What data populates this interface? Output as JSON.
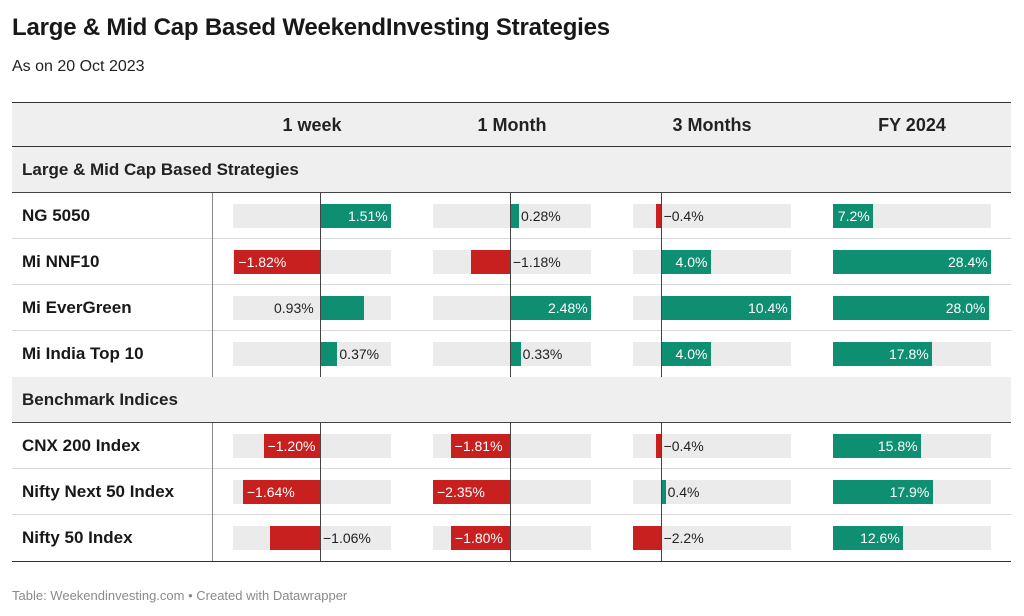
{
  "title": "Large & Mid Cap Based WeekendInvesting Strategies",
  "subtitle": "As on 20 Oct 2023",
  "footer": "Table: Weekendinvesting.com • Created with Datawrapper",
  "colors": {
    "positive": "#0e8f72",
    "negative": "#c8201f"
  },
  "chart_data": {
    "type": "table",
    "columns": [
      "1 week",
      "1 Month",
      "3 Months",
      "FY 2024"
    ],
    "groups": [
      {
        "label": "Large & Mid Cap Based Strategies",
        "rows": [
          {
            "name": "NG 5050",
            "values": [
              1.51,
              0.28,
              -0.4,
              7.2
            ],
            "labels": [
              "1.51%",
              "0.28%",
              "−0.4%",
              "7.2%"
            ]
          },
          {
            "name": "Mi NNF10",
            "values": [
              -1.82,
              -1.18,
              4.0,
              28.4
            ],
            "labels": [
              "−1.82%",
              "−1.18%",
              "4.0%",
              "28.4%"
            ]
          },
          {
            "name": "Mi EverGreen",
            "values": [
              0.93,
              2.48,
              10.4,
              28.0
            ],
            "labels": [
              "0.93%",
              "2.48%",
              "10.4%",
              "28.0%"
            ]
          },
          {
            "name": "Mi India Top 10",
            "values": [
              0.37,
              0.33,
              4.0,
              17.8
            ],
            "labels": [
              "0.37%",
              "0.33%",
              "4.0%",
              "17.8%"
            ]
          }
        ]
      },
      {
        "label": "Benchmark Indices",
        "rows": [
          {
            "name": "CNX 200 Index",
            "values": [
              -1.2,
              -1.81,
              -0.4,
              15.8
            ],
            "labels": [
              "−1.20%",
              "−1.81%",
              "−0.4%",
              "15.8%"
            ]
          },
          {
            "name": "Nifty Next 50 Index",
            "values": [
              -1.64,
              -2.35,
              0.4,
              17.9
            ],
            "labels": [
              "−1.64%",
              "−2.35%",
              "0.4%",
              "17.9%"
            ]
          },
          {
            "name": "Nifty 50 Index",
            "values": [
              -1.06,
              -1.8,
              -2.2,
              12.6
            ],
            "labels": [
              "−1.06%",
              "−1.80%",
              "−2.2%",
              "12.6%"
            ]
          }
        ]
      }
    ],
    "column_ranges": [
      [
        -1.85,
        1.51
      ],
      [
        -2.35,
        2.48
      ],
      [
        -2.2,
        10.4
      ],
      [
        0,
        28.4
      ]
    ]
  }
}
